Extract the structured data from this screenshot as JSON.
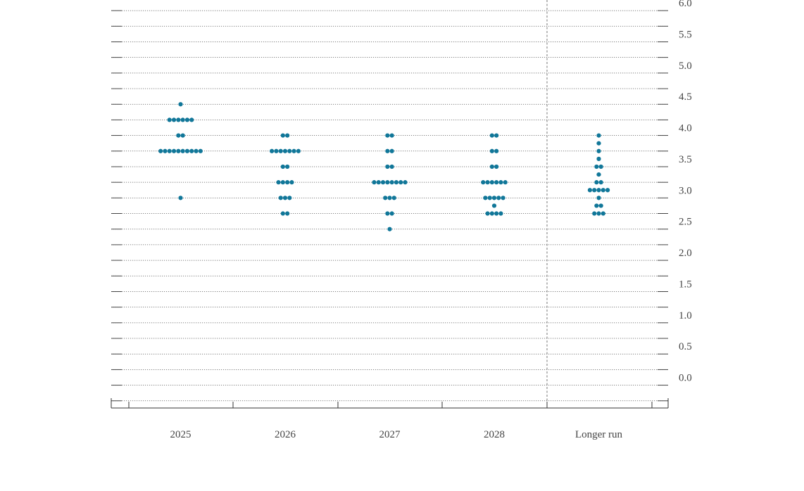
{
  "chart_data": {
    "type": "scatter",
    "categories": [
      "2025",
      "2026",
      "2027",
      "2028",
      "Longer run"
    ],
    "y_ticks": [
      "0.0",
      "0.5",
      "1.0",
      "1.5",
      "2.0",
      "2.5",
      "3.0",
      "3.5",
      "4.0",
      "4.5",
      "5.0",
      "5.5",
      "6.0"
    ],
    "ylim": [
      -0.375,
      6.125
    ],
    "grid": true,
    "dot_color": "#117799",
    "groups": [
      {
        "category": "2025",
        "dots": [
          {
            "y": 4.375,
            "count": 1
          },
          {
            "y": 4.125,
            "count": 6
          },
          {
            "y": 3.875,
            "count": 2
          },
          {
            "y": 3.625,
            "count": 10
          },
          {
            "y": 2.875,
            "count": 1
          }
        ]
      },
      {
        "category": "2026",
        "dots": [
          {
            "y": 3.875,
            "count": 2
          },
          {
            "y": 3.625,
            "count": 7
          },
          {
            "y": 3.375,
            "count": 2
          },
          {
            "y": 3.125,
            "count": 4
          },
          {
            "y": 2.875,
            "count": 3
          },
          {
            "y": 2.625,
            "count": 2
          }
        ]
      },
      {
        "category": "2027",
        "dots": [
          {
            "y": 3.875,
            "count": 2
          },
          {
            "y": 3.625,
            "count": 2
          },
          {
            "y": 3.375,
            "count": 2
          },
          {
            "y": 3.125,
            "count": 8
          },
          {
            "y": 2.875,
            "count": 3
          },
          {
            "y": 2.625,
            "count": 2
          },
          {
            "y": 2.375,
            "count": 1
          }
        ]
      },
      {
        "category": "2028",
        "dots": [
          {
            "y": 3.875,
            "count": 2
          },
          {
            "y": 3.625,
            "count": 2
          },
          {
            "y": 3.375,
            "count": 2
          },
          {
            "y": 3.125,
            "count": 6
          },
          {
            "y": 2.875,
            "count": 5
          },
          {
            "y": 2.75,
            "count": 1
          },
          {
            "y": 2.625,
            "count": 4
          }
        ]
      },
      {
        "category": "Longer run",
        "dots": [
          {
            "y": 3.875,
            "count": 1
          },
          {
            "y": 3.75,
            "count": 1
          },
          {
            "y": 3.625,
            "count": 1
          },
          {
            "y": 3.5,
            "count": 1
          },
          {
            "y": 3.375,
            "count": 2
          },
          {
            "y": 3.25,
            "count": 1
          },
          {
            "y": 3.125,
            "count": 2
          },
          {
            "y": 3.0,
            "count": 5
          },
          {
            "y": 2.875,
            "count": 1
          },
          {
            "y": 2.75,
            "count": 2
          },
          {
            "y": 2.625,
            "count": 3
          }
        ]
      }
    ]
  }
}
